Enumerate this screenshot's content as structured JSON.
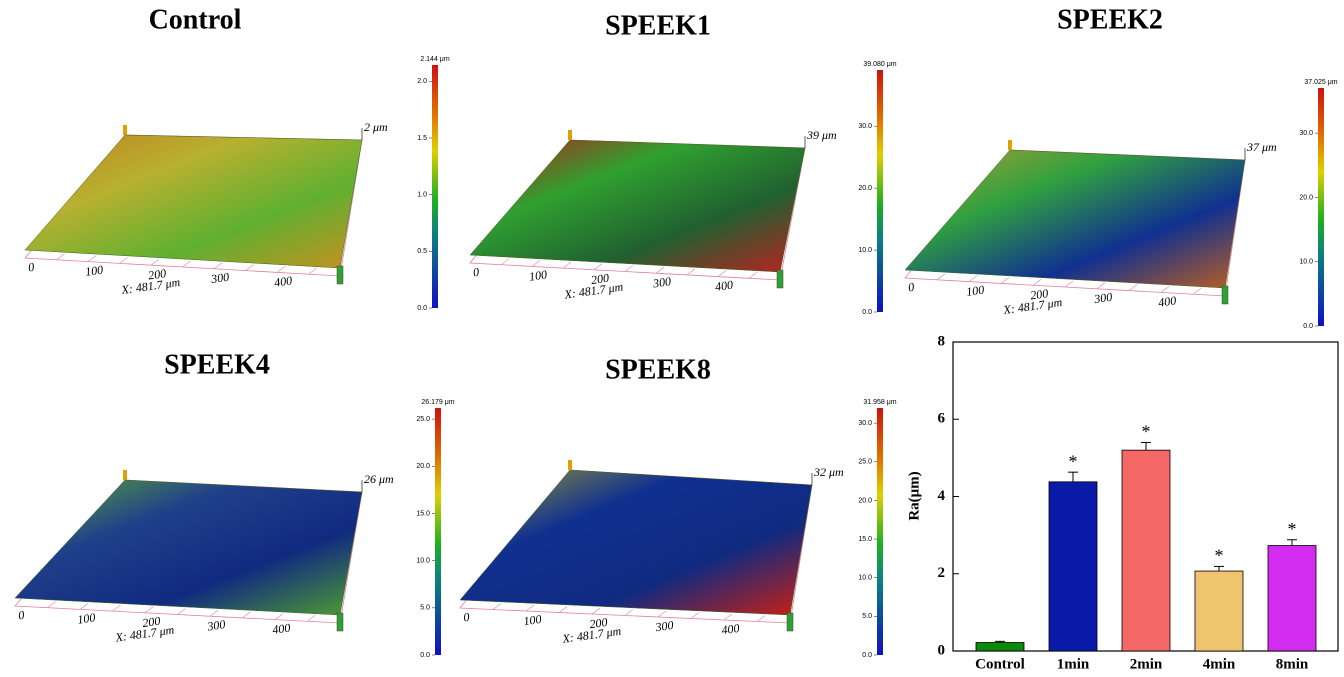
{
  "panels": [
    {
      "title": "Control",
      "z_label": "2 μm",
      "x_label": "X: 481.7 μm",
      "x_ticks": [
        "0",
        "100",
        "200",
        "300",
        "400"
      ],
      "colorbar": {
        "max_label": "2.144 μm",
        "max": 2.144,
        "ticks": [
          {
            "value": 0,
            "label": "0.0"
          },
          {
            "value": 0.5,
            "label": "0.5"
          },
          {
            "value": 1,
            "label": "1.0"
          },
          {
            "value": 1.5,
            "label": "1.5"
          },
          {
            "value": 2,
            "label": "2.0"
          }
        ]
      }
    },
    {
      "title": "SPEEK1",
      "z_label": "39 μm",
      "x_label": "X: 481.7 μm",
      "x_ticks": [
        "0",
        "100",
        "200",
        "300",
        "400"
      ],
      "colorbar": {
        "max_label": "39.080 μm",
        "max": 39.08,
        "ticks": [
          {
            "value": 0,
            "label": "0.0"
          },
          {
            "value": 10,
            "label": "10.0"
          },
          {
            "value": 20,
            "label": "20.0"
          },
          {
            "value": 30,
            "label": "30.0"
          }
        ]
      }
    },
    {
      "title": "SPEEK2",
      "z_label": "37 μm",
      "x_label": "X: 481.7 μm",
      "x_ticks": [
        "0",
        "100",
        "200",
        "300",
        "400"
      ],
      "colorbar": {
        "max_label": "37.025 μm",
        "max": 37.025,
        "ticks": [
          {
            "value": 0,
            "label": "0.0"
          },
          {
            "value": 10,
            "label": "10.0"
          },
          {
            "value": 20,
            "label": "20.0"
          },
          {
            "value": 30,
            "label": "30.0"
          }
        ]
      }
    },
    {
      "title": "SPEEK4",
      "z_label": "26 μm",
      "x_label": "X: 481.7 μm",
      "x_ticks": [
        "0",
        "100",
        "200",
        "300",
        "400"
      ],
      "colorbar": {
        "max_label": "26.179 μm",
        "max": 26.179,
        "ticks": [
          {
            "value": 0,
            "label": "0.0"
          },
          {
            "value": 5,
            "label": "5.0"
          },
          {
            "value": 10,
            "label": "10.0"
          },
          {
            "value": 15,
            "label": "15.0"
          },
          {
            "value": 20,
            "label": "20.0"
          },
          {
            "value": 25,
            "label": "25.0"
          }
        ]
      }
    },
    {
      "title": "SPEEK8",
      "z_label": "32 μm",
      "x_label": "X: 481.7 μm",
      "x_ticks": [
        "0",
        "100",
        "200",
        "300",
        "400"
      ],
      "colorbar": {
        "max_label": "31.958 μm",
        "max": 31.958,
        "ticks": [
          {
            "value": 0,
            "label": "0.0"
          },
          {
            "value": 5,
            "label": "5.0"
          },
          {
            "value": 10,
            "label": "10.0"
          },
          {
            "value": 15,
            "label": "15.0"
          },
          {
            "value": 20,
            "label": "20.0"
          },
          {
            "value": 25,
            "label": "25.0"
          },
          {
            "value": 30,
            "label": "30.0"
          }
        ]
      }
    }
  ],
  "chart_data": {
    "type": "bar",
    "y_label": "Ra(μm)",
    "categories": [
      "Control",
      "1min",
      "2min",
      "4min",
      "8min"
    ],
    "values": [
      0.22,
      4.38,
      5.2,
      2.07,
      2.73
    ],
    "errors": [
      0.03,
      0.25,
      0.2,
      0.12,
      0.15
    ],
    "colors": [
      "#0a8a0a",
      "#0a1aa8",
      "#f46868",
      "#eec46e",
      "#d22cf0"
    ],
    "significance": [
      null,
      "*",
      "*",
      "*",
      "*"
    ],
    "ylim": [
      0,
      8
    ],
    "yticks": [
      0,
      2,
      4,
      6,
      8
    ]
  }
}
